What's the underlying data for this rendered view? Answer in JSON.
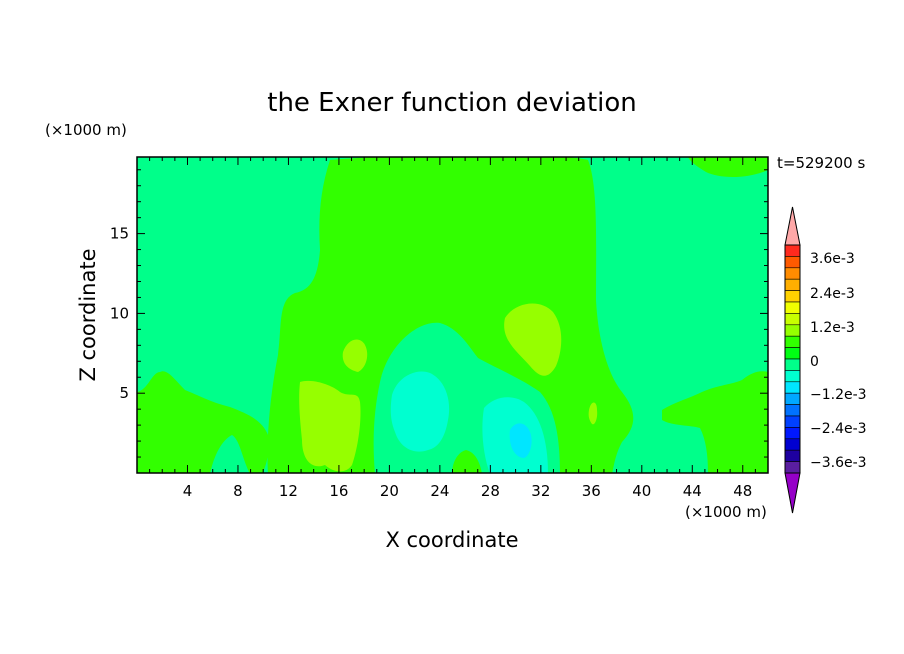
{
  "chart_data": {
    "type": "heatmap",
    "title": "the Exner function deviation",
    "xlabel": "X coordinate",
    "ylabel": "Z coordinate",
    "x_units": "(×1000 m)",
    "z_units": "(×1000 m)",
    "time_label": "t=529200 s",
    "xlim": [
      0,
      50
    ],
    "ylim": [
      0,
      19.8
    ],
    "x_ticks": [
      "4",
      "8",
      "12",
      "16",
      "20",
      "24",
      "28",
      "32",
      "36",
      "40",
      "44",
      "48"
    ],
    "y_ticks": [
      "5",
      "10",
      "15"
    ],
    "colorbar": {
      "labels": [
        "3.6e-3",
        "2.4e-3",
        "1.2e-3",
        "0",
        "−1.2e-3",
        "−2.4e-3",
        "−3.6e-3"
      ],
      "colors_top_to_bottom": [
        "#ffa8a8",
        "#ff2a1e",
        "#ff5a00",
        "#ff8c00",
        "#ffaf00",
        "#ffd200",
        "#f0ff00",
        "#c8ff00",
        "#96ff00",
        "#32ff00",
        "#00ff14",
        "#00ff8a",
        "#00ffd0",
        "#00e6ff",
        "#00a8ff",
        "#0072ff",
        "#0040ff",
        "#0018ff",
        "#0000d0",
        "#1e00a0",
        "#5a1ea0",
        "#9600c8"
      ]
    },
    "regions": [
      {
        "level": "0 to -0.6e-3",
        "color": "#00ff8a",
        "note": "background"
      },
      {
        "level": "0 to 0.6e-3",
        "color": "#32ff00",
        "note": "central column x 14-36 km, left/right low areas"
      },
      {
        "level": "0.6e-3 to 1.2e-3",
        "color": "#96ff00",
        "note": "local maxima near x 15, 29, 35 km"
      },
      {
        "level": "-0.6e-3 to -1.2e-3",
        "color": "#00ffd0",
        "note": "lows near x 22 and 30 km, z below 7 km"
      },
      {
        "level": "-1.2e-3 to -1.8e-3",
        "color": "#00e6ff",
        "note": "minimum near x 30 km, z 2 km"
      }
    ]
  }
}
